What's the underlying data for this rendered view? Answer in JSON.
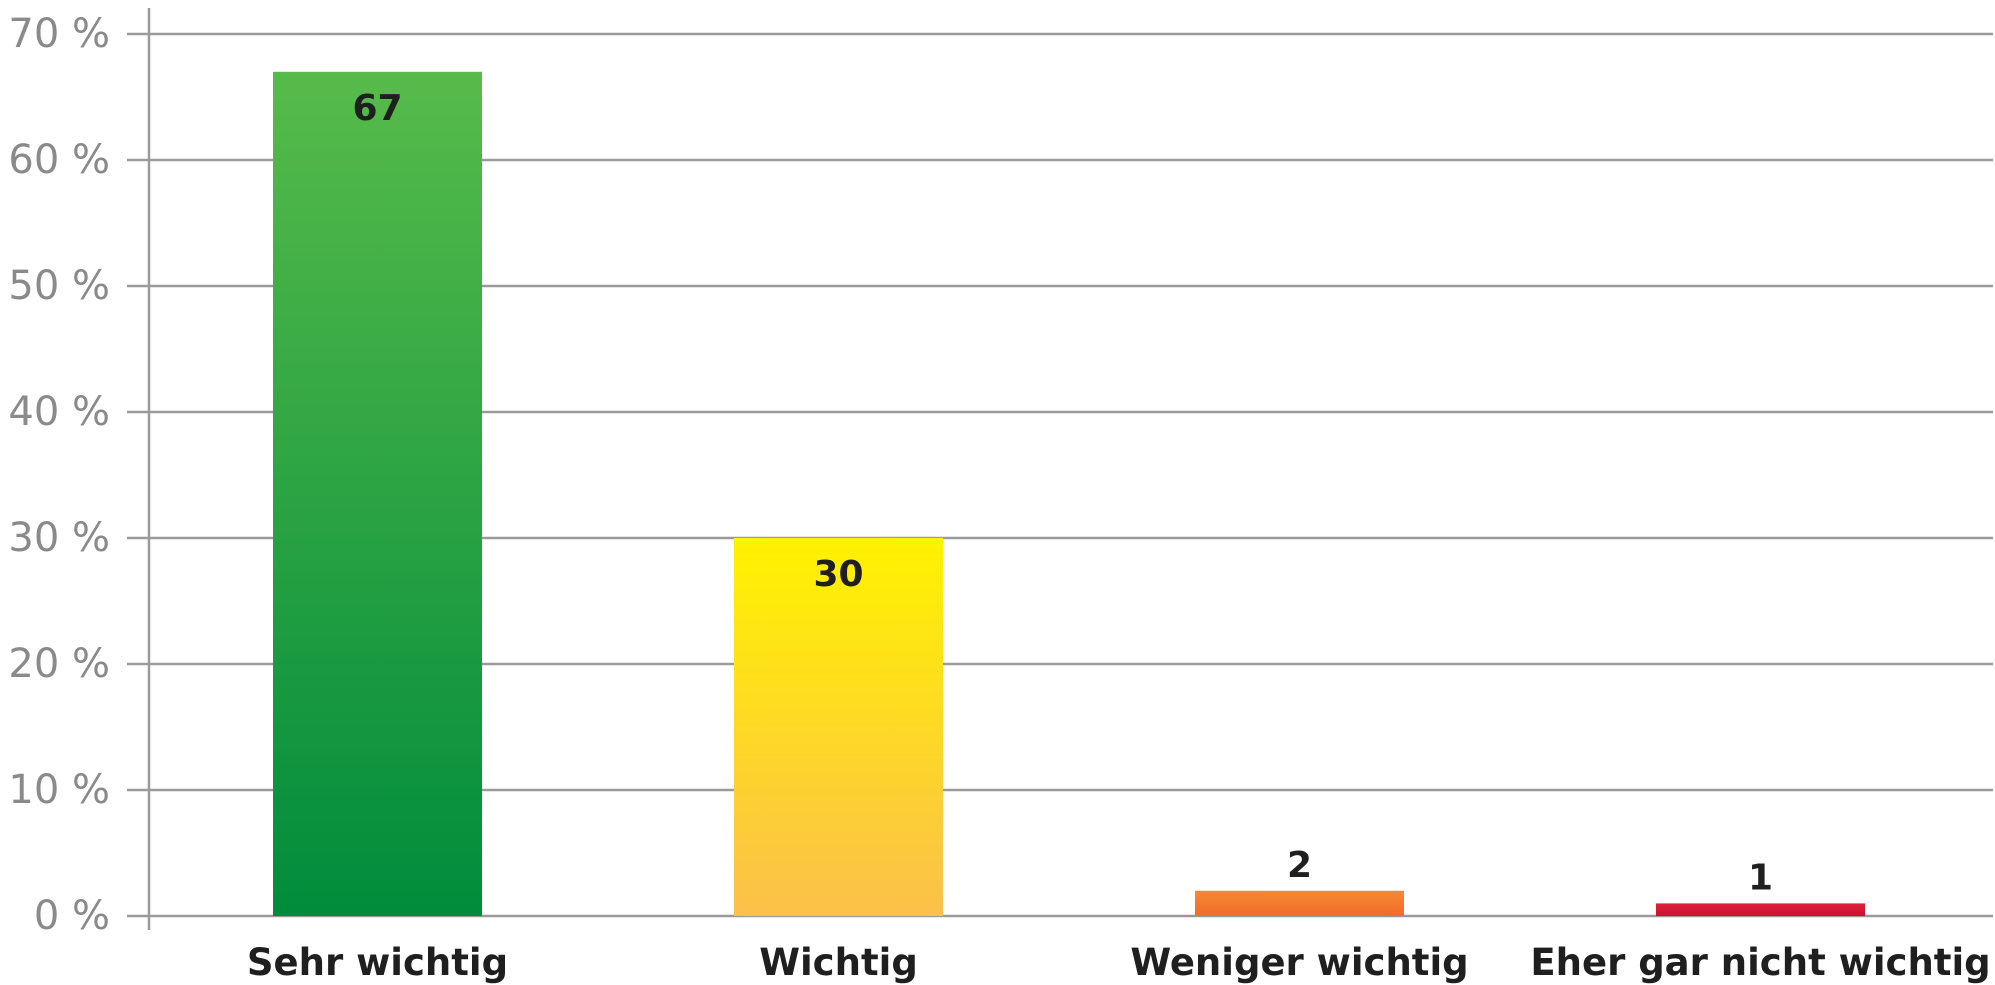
{
  "chart_data": {
    "type": "bar",
    "title": "",
    "xlabel": "",
    "ylabel": "",
    "categories": [
      "Sehr wichtig",
      "Wichtig",
      "Weniger wichtig",
      "Eher gar nicht wichtig"
    ],
    "values": [
      67,
      30,
      2,
      1
    ],
    "data_labels": [
      "67",
      "30",
      "2",
      "1"
    ],
    "ylim": [
      0,
      70
    ],
    "y_ticks": [
      0,
      10,
      20,
      30,
      40,
      50,
      60,
      70
    ],
    "y_tick_labels": [
      "0 %",
      "10 %",
      "20 %",
      "30 %",
      "40 %",
      "50 %",
      "60 %",
      "70 %"
    ],
    "grid": true,
    "legend": "none",
    "bar_gradients": [
      [
        "#57bb4a",
        "#008c3c"
      ],
      [
        "#fff200",
        "#fcc04a"
      ],
      [
        "#f58a32",
        "#f26b2b"
      ],
      [
        "#e0233c",
        "#c8102e"
      ]
    ]
  }
}
